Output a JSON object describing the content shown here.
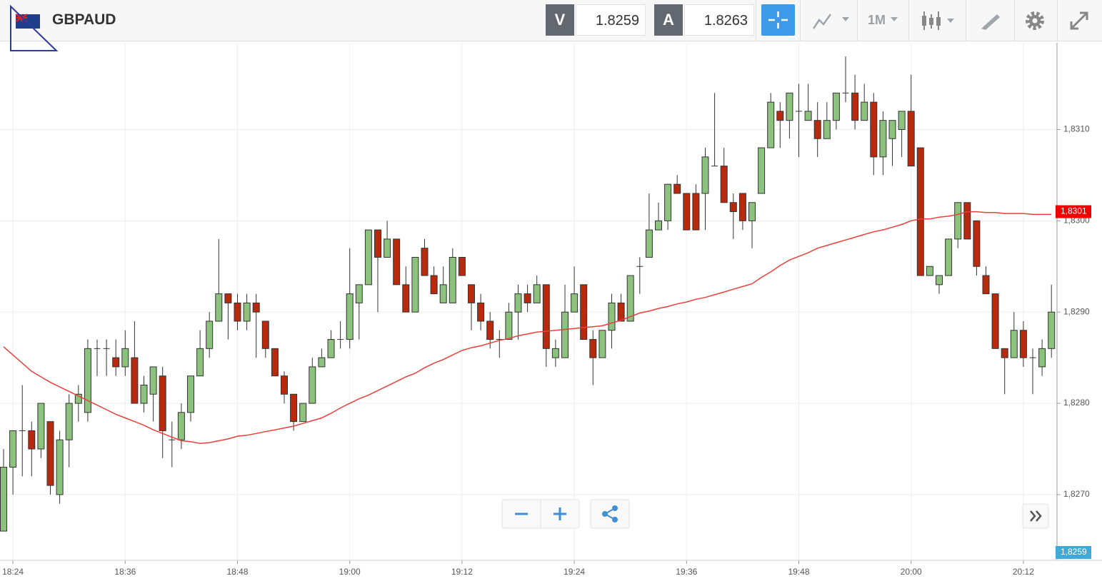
{
  "header": {
    "symbol": "GBPAUD",
    "bid_label": "V",
    "bid": 1.8259,
    "ask_label": "A",
    "ask": 1.8263,
    "timeframe": "1M"
  },
  "chart_data": {
    "type": "candlestick",
    "categories": [
      null,
      "18:24",
      null,
      null,
      null,
      null,
      null,
      null,
      null,
      null,
      null,
      null,
      null,
      "18:36",
      null,
      null,
      null,
      null,
      null,
      null,
      null,
      null,
      null,
      null,
      null,
      "18:48",
      null,
      null,
      null,
      null,
      null,
      null,
      null,
      null,
      null,
      null,
      null,
      "19:00",
      null,
      null,
      null,
      null,
      null,
      null,
      null,
      null,
      null,
      null,
      null,
      "19:12",
      null,
      null,
      null,
      null,
      null,
      null,
      null,
      null,
      null,
      null,
      null,
      "19:24",
      null,
      null,
      null,
      null,
      null,
      null,
      null,
      null,
      null,
      null,
      null,
      "19:36",
      null,
      null,
      null,
      null,
      null,
      null,
      null,
      null,
      null,
      null,
      null,
      "19:48",
      null,
      null,
      null,
      null,
      null,
      null,
      null,
      null,
      null,
      null,
      null,
      "20:00",
      null,
      null,
      null,
      null,
      null,
      null,
      null,
      null,
      null,
      null,
      null,
      "20:12",
      null,
      null,
      null
    ],
    "open": [
      1.8266,
      1.8273,
      1.8277,
      1.8277,
      1.8275,
      1.8278,
      1.827,
      1.8276,
      1.828,
      1.8279,
      1.8286,
      1.8286,
      1.8285,
      1.8284,
      1.8285,
      1.828,
      1.8281,
      1.8283,
      1.8276,
      1.8276,
      1.8279,
      1.8283,
      1.8286,
      1.8289,
      1.8292,
      1.8291,
      1.8289,
      1.8291,
      1.8289,
      1.8286,
      1.8283,
      1.8281,
      1.8278,
      1.828,
      1.8284,
      1.8285,
      1.8287,
      1.8287,
      1.8291,
      1.8293,
      1.8299,
      1.8296,
      1.8298,
      1.8293,
      1.829,
      1.8297,
      1.8294,
      1.8291,
      1.8291,
      1.8296,
      1.8293,
      1.8291,
      1.8289,
      1.8287,
      1.8287,
      1.829,
      1.8292,
      1.8291,
      1.8293,
      1.8285,
      1.8285,
      1.829,
      1.8293,
      1.8287,
      1.8285,
      1.8288,
      1.8291,
      1.8289,
      1.8295,
      1.8296,
      1.8299,
      1.83,
      1.8304,
      1.8303,
      1.8303,
      1.8303,
      1.8306,
      1.8306,
      1.8302,
      1.8303,
      1.83,
      1.8303,
      1.8308,
      1.8312,
      1.8311,
      1.8312,
      1.8311,
      1.8311,
      1.8309,
      1.8311,
      1.8314,
      1.8314,
      1.8311,
      1.8313,
      1.8307,
      1.8309,
      1.831,
      1.8312,
      1.8308,
      1.8294,
      1.8293,
      1.8294,
      1.8298,
      1.8302,
      1.83,
      1.8294,
      1.8292,
      1.8286,
      1.8285,
      1.8288,
      1.8285,
      1.8284,
      1.8286
    ],
    "high": [
      1.8275,
      1.8277,
      1.8282,
      1.8278,
      1.828,
      1.8278,
      1.8277,
      1.8281,
      1.8282,
      1.8287,
      1.8287,
      1.8287,
      1.8287,
      1.8288,
      1.8289,
      1.8283,
      1.8284,
      1.8284,
      1.8278,
      1.828,
      1.8283,
      1.8288,
      1.829,
      1.8298,
      1.8292,
      1.8292,
      1.8292,
      1.8292,
      1.8289,
      1.8286,
      1.82835,
      1.8281,
      1.828,
      1.8285,
      1.8286,
      1.8288,
      1.8289,
      1.8297,
      1.8293,
      1.8299,
      1.8299,
      1.83,
      1.8298,
      1.8295,
      1.8296,
      1.8298,
      1.8295,
      1.8295,
      1.8297,
      1.8296,
      1.8293,
      1.8292,
      1.829,
      1.8288,
      1.8291,
      1.8293,
      1.8293,
      1.8294,
      1.8293,
      1.8287,
      1.8293,
      1.8295,
      1.8293,
      1.8288,
      1.8288,
      1.8292,
      1.8292,
      1.8294,
      1.8296,
      1.8303,
      1.8302,
      1.8304,
      1.8305,
      1.8303,
      1.8304,
      1.8308,
      1.8314,
      1.8308,
      1.8303,
      1.8303,
      1.8302,
      1.8308,
      1.8314,
      1.8313,
      1.8314,
      1.8315,
      1.8315,
      1.8313,
      1.8313,
      1.8314,
      1.8318,
      1.8316,
      1.8315,
      1.8314,
      1.8312,
      1.8311,
      1.8312,
      1.8316,
      1.8308,
      1.8295,
      1.8294,
      1.8298,
      1.8302,
      1.8302,
      1.83,
      1.8295,
      1.8292,
      1.8286,
      1.829,
      1.8289,
      1.8286,
      1.8287,
      1.8293
    ],
    "low": [
      1.8266,
      1.827,
      1.8272,
      1.8272,
      1.8274,
      1.827,
      1.8269,
      1.8273,
      1.8278,
      1.8278,
      1.8283,
      1.8283,
      1.8283,
      1.8283,
      1.828,
      1.8279,
      1.8278,
      1.8274,
      1.8273,
      1.8275,
      1.8278,
      1.8283,
      1.8285,
      1.8289,
      1.8287,
      1.8288,
      1.8288,
      1.8285,
      1.8285,
      1.8283,
      1.828,
      1.8277,
      1.8278,
      1.828,
      1.8284,
      1.8285,
      1.8286,
      1.8286,
      1.8287,
      1.8293,
      1.829,
      1.8296,
      1.8293,
      1.829,
      1.829,
      1.8294,
      1.8292,
      1.8291,
      1.8291,
      1.8294,
      1.8288,
      1.8288,
      1.8286,
      1.8285,
      1.8287,
      1.8287,
      1.829,
      1.8291,
      1.8284,
      1.8284,
      1.8285,
      1.829,
      1.8287,
      1.8282,
      1.8285,
      1.8286,
      1.8289,
      1.8289,
      1.8292,
      1.8296,
      1.8299,
      1.8299,
      1.8303,
      1.8299,
      1.8299,
      1.8299,
      1.8306,
      1.8302,
      1.8298,
      1.8299,
      1.8297,
      1.8303,
      1.8308,
      1.8308,
      1.8309,
      1.8307,
      1.8311,
      1.8307,
      1.8309,
      1.831,
      1.8313,
      1.831,
      1.8311,
      1.8305,
      1.8305,
      1.8306,
      1.8307,
      1.8306,
      1.8294,
      1.8294,
      1.8292,
      1.8294,
      1.8297,
      1.8298,
      1.8294,
      1.8292,
      1.8286,
      1.8281,
      1.8285,
      1.8284,
      1.8281,
      1.8283,
      1.8285
    ],
    "close": [
      1.8273,
      1.8277,
      1.8277,
      1.8275,
      1.828,
      1.8271,
      1.8276,
      1.828,
      1.8281,
      1.8286,
      1.8286,
      1.8286,
      1.8284,
      1.8286,
      1.828,
      1.8282,
      1.8284,
      1.8277,
      1.8276,
      1.8279,
      1.8283,
      1.8286,
      1.8289,
      1.8292,
      1.8291,
      1.8289,
      1.8291,
      1.829,
      1.8286,
      1.8283,
      1.8281,
      1.8278,
      1.828,
      1.8284,
      1.8285,
      1.8287,
      1.8287,
      1.8292,
      1.8293,
      1.8299,
      1.8296,
      1.8298,
      1.8293,
      1.829,
      1.8296,
      1.8294,
      1.8292,
      1.8293,
      1.8296,
      1.8294,
      1.8291,
      1.8289,
      1.8287,
      1.8287,
      1.829,
      1.8292,
      1.8291,
      1.8293,
      1.8286,
      1.8286,
      1.829,
      1.8292,
      1.8287,
      1.8285,
      1.8288,
      1.8291,
      1.8289,
      1.8294,
      1.8295,
      1.8299,
      1.83,
      1.8304,
      1.8303,
      1.8299,
      1.8299,
      1.8307,
      1.8306,
      1.8302,
      1.8301,
      1.83,
      1.8302,
      1.8308,
      1.8313,
      1.8311,
      1.8314,
      1.8312,
      1.8312,
      1.8309,
      1.8311,
      1.8314,
      1.8314,
      1.8311,
      1.8313,
      1.8307,
      1.8311,
      1.8311,
      1.8312,
      1.8306,
      1.8294,
      1.8295,
      1.8294,
      1.8298,
      1.8302,
      1.8298,
      1.8295,
      1.8292,
      1.8286,
      1.8285,
      1.8288,
      1.8285,
      1.8285,
      1.8286,
      1.829
    ],
    "up_color": "#8cc17e",
    "down_color": "#b8290e",
    "moving_average": {
      "type": "line",
      "color": "#e8403a",
      "values": [
        1.82862,
        1.82853,
        1.82844,
        1.82835,
        1.82829,
        1.82823,
        1.82818,
        1.82813,
        1.82808,
        1.82803,
        1.82798,
        1.82793,
        1.82788,
        1.82784,
        1.8278,
        1.82776,
        1.82771,
        1.82767,
        1.82763,
        1.82759,
        1.82758,
        1.82756,
        1.82757,
        1.82759,
        1.82761,
        1.82764,
        1.82765,
        1.82767,
        1.82769,
        1.82771,
        1.82773,
        1.82775,
        1.82778,
        1.82781,
        1.82784,
        1.82789,
        1.82795,
        1.828,
        1.82805,
        1.82809,
        1.82814,
        1.82819,
        1.82824,
        1.82829,
        1.82833,
        1.82839,
        1.82844,
        1.82848,
        1.82853,
        1.82858,
        1.82861,
        1.82863,
        1.82866,
        1.82869,
        1.82871,
        1.82874,
        1.82876,
        1.82878,
        1.82879,
        1.8288,
        1.82881,
        1.82882,
        1.82883,
        1.82884,
        1.82885,
        1.82888,
        1.82891,
        1.82895,
        1.82899,
        1.82901,
        1.82904,
        1.82906,
        1.82909,
        1.82911,
        1.82914,
        1.82916,
        1.82919,
        1.82922,
        1.82925,
        1.82928,
        1.82931,
        1.82938,
        1.82944,
        1.82951,
        1.82957,
        1.82961,
        1.82965,
        1.8297,
        1.82973,
        1.82976,
        1.82979,
        1.82982,
        1.82985,
        1.82988,
        1.8299,
        1.82993,
        1.82996,
        1.83,
        1.83002,
        1.83002,
        1.83004,
        1.83005,
        1.83007,
        1.8301,
        1.8301,
        1.83009,
        1.83009,
        1.83008,
        1.83008,
        1.83008,
        1.83007,
        1.83007,
        1.83007
      ]
    },
    "ma_last": {
      "value": 1.8301,
      "label": "1,8301"
    },
    "last_price": {
      "value": 1.8259,
      "label": "1,8259"
    },
    "ylim": [
      1.82628,
      1.83195
    ],
    "yticks": [
      {
        "value": 1.827,
        "label": "1,8270"
      },
      {
        "value": 1.828,
        "label": "1,8280"
      },
      {
        "value": 1.829,
        "label": "1,8290"
      },
      {
        "value": 1.83,
        "label": "1,8300"
      },
      {
        "value": 1.831,
        "label": "1,8310"
      }
    ],
    "grid": true
  }
}
